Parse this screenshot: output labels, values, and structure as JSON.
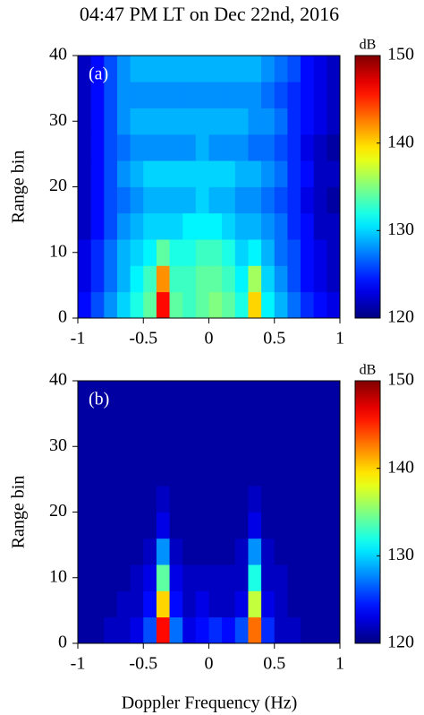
{
  "chart_data": [
    {
      "type": "heatmap",
      "title": "04:47 PM LT on Dec 22nd, 2016",
      "panel_label": "(a)",
      "ylabel": "Range bin",
      "colormap": "jet",
      "zlabel": "dB",
      "zlim": [
        120,
        150
      ],
      "zticks": [
        120,
        130,
        140,
        150
      ],
      "xlim": [
        -1,
        1
      ],
      "xticks": [
        -1,
        -0.5,
        0,
        0.5,
        1
      ],
      "ylim": [
        0,
        40
      ],
      "yticks": [
        0,
        10,
        20,
        30,
        40
      ],
      "x": [
        -0.95,
        -0.85,
        -0.75,
        -0.65,
        -0.55,
        -0.45,
        -0.35,
        -0.25,
        -0.15,
        -0.05,
        0.05,
        0.15,
        0.25,
        0.35,
        0.45,
        0.55,
        0.65,
        0.75,
        0.85,
        0.95
      ],
      "y": [
        2,
        6,
        10,
        14,
        18,
        22,
        26,
        30,
        34,
        38
      ],
      "z": [
        [
          124,
          126,
          128,
          130,
          132,
          134,
          146,
          134,
          133,
          134,
          135,
          134,
          132,
          140,
          131,
          129,
          127,
          125,
          124,
          123
        ],
        [
          123,
          125,
          127,
          129,
          131,
          133,
          142,
          133,
          133,
          134,
          134,
          133,
          131,
          136,
          130,
          128,
          126,
          124,
          123,
          122
        ],
        [
          123,
          125,
          127,
          129,
          130,
          131,
          134,
          132,
          132,
          133,
          133,
          132,
          130,
          131,
          129,
          127,
          126,
          124,
          123,
          122
        ],
        [
          122,
          124,
          126,
          128,
          129,
          130,
          130,
          130,
          131,
          131,
          131,
          130,
          129,
          129,
          128,
          127,
          125,
          124,
          122,
          122
        ],
        [
          122,
          124,
          126,
          127,
          128,
          129,
          129,
          129,
          129,
          130,
          129,
          129,
          128,
          128,
          127,
          126,
          125,
          123,
          122,
          121
        ],
        [
          122,
          124,
          126,
          128,
          129,
          130,
          130,
          130,
          130,
          130,
          130,
          130,
          129,
          129,
          128,
          127,
          125,
          124,
          122,
          122
        ],
        [
          122,
          124,
          126,
          127,
          128,
          128,
          128,
          128,
          128,
          129,
          128,
          128,
          128,
          127,
          127,
          126,
          125,
          123,
          122,
          121
        ],
        [
          122,
          124,
          126,
          128,
          129,
          129,
          129,
          129,
          129,
          129,
          129,
          129,
          129,
          128,
          128,
          127,
          125,
          124,
          123,
          122
        ],
        [
          122,
          124,
          126,
          128,
          128,
          128,
          128,
          128,
          128,
          128,
          128,
          128,
          128,
          128,
          127,
          126,
          125,
          124,
          123,
          122
        ],
        [
          122,
          124,
          126,
          128,
          129,
          129,
          129,
          129,
          129,
          129,
          129,
          129,
          129,
          129,
          128,
          127,
          126,
          124,
          123,
          122
        ]
      ]
    },
    {
      "type": "heatmap",
      "panel_label": "(b)",
      "ylabel": "Range bin",
      "xlabel": "Doppler Frequency (Hz)",
      "colormap": "jet",
      "zlabel": "dB",
      "zlim": [
        120,
        150
      ],
      "zticks": [
        120,
        130,
        140,
        150
      ],
      "xlim": [
        -1,
        1
      ],
      "xticks": [
        -1,
        -0.5,
        0,
        0.5,
        1
      ],
      "ylim": [
        0,
        40
      ],
      "yticks": [
        0,
        10,
        20,
        30,
        40
      ],
      "x": [
        -0.95,
        -0.85,
        -0.75,
        -0.65,
        -0.55,
        -0.45,
        -0.35,
        -0.25,
        -0.15,
        -0.05,
        0.05,
        0.15,
        0.25,
        0.35,
        0.45,
        0.55,
        0.65,
        0.75,
        0.85,
        0.95
      ],
      "y": [
        2,
        6,
        10,
        14,
        18,
        22,
        26,
        30,
        34,
        38
      ],
      "z": [
        [
          121,
          121,
          122,
          122,
          123,
          126,
          146,
          127,
          123,
          124,
          125,
          124,
          126,
          143,
          125,
          122,
          122,
          121,
          121,
          121
        ],
        [
          121,
          121,
          121,
          122,
          122,
          124,
          140,
          124,
          122,
          123,
          122,
          122,
          123,
          137,
          123,
          122,
          121,
          121,
          121,
          121
        ],
        [
          121,
          121,
          121,
          121,
          122,
          123,
          134,
          123,
          122,
          122,
          122,
          122,
          122,
          132,
          122,
          122,
          121,
          121,
          121,
          121
        ],
        [
          121,
          121,
          121,
          121,
          121,
          122,
          128,
          122,
          121,
          121,
          121,
          121,
          122,
          128,
          122,
          121,
          121,
          121,
          121,
          121
        ],
        [
          121,
          121,
          121,
          121,
          121,
          121,
          123,
          121,
          121,
          121,
          121,
          121,
          121,
          123,
          121,
          121,
          121,
          121,
          121,
          121
        ],
        [
          121,
          121,
          121,
          121,
          121,
          121,
          122,
          121,
          121,
          121,
          121,
          121,
          121,
          122,
          121,
          121,
          121,
          121,
          121,
          121
        ],
        [
          121,
          121,
          121,
          121,
          121,
          121,
          121,
          121,
          121,
          121,
          121,
          121,
          121,
          121,
          121,
          121,
          121,
          121,
          121,
          121
        ],
        [
          121,
          121,
          121,
          121,
          121,
          121,
          121,
          121,
          121,
          121,
          121,
          121,
          121,
          121,
          121,
          121,
          121,
          121,
          121,
          121
        ],
        [
          121,
          121,
          121,
          121,
          121,
          121,
          121,
          121,
          121,
          121,
          121,
          121,
          121,
          121,
          121,
          121,
          121,
          121,
          121,
          121
        ],
        [
          121,
          121,
          121,
          121,
          121,
          121,
          121,
          121,
          121,
          121,
          121,
          121,
          121,
          121,
          121,
          121,
          121,
          121,
          121,
          121
        ]
      ]
    }
  ]
}
